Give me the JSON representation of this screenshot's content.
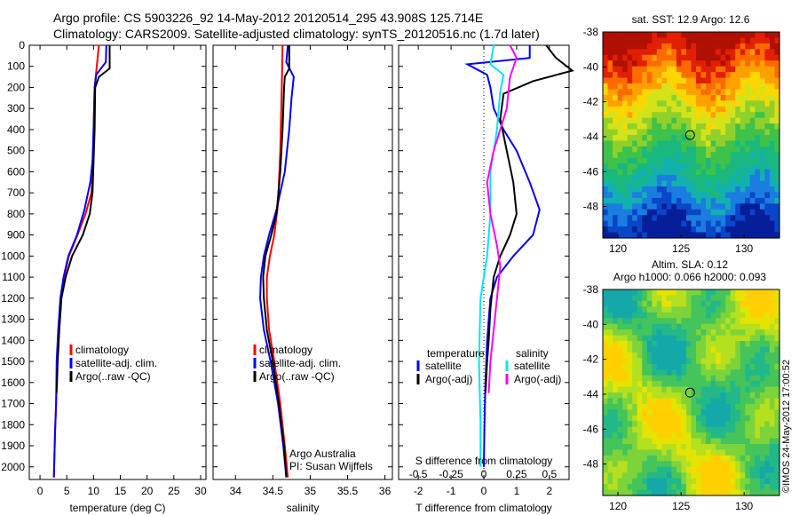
{
  "header": {
    "line1": "Argo profile: CS 5903226_92 14-May-2012 20120514_295 43.908S 125.714E",
    "line2": "Climatology: CARS2009. Satellite-adjusted climatology: synTS_20120516.nc (1.7d later)"
  },
  "stamp": "©IMOS 24-May-2012 17:00:52",
  "colors": {
    "red": "#ff0000",
    "blue": "#0000ff",
    "black": "#000000",
    "cyan": "#00e5ff",
    "magenta": "#ff00ff"
  },
  "chart_data": [
    {
      "type": "line",
      "panel": "temperature",
      "xlabel": "temperature (deg C)",
      "ylabel": "",
      "xlim": [
        -2,
        31
      ],
      "ylim": [
        2060,
        0
      ],
      "xticks": [
        0,
        5,
        10,
        15,
        20,
        25,
        30
      ],
      "yticks": [
        0,
        100,
        200,
        300,
        400,
        500,
        600,
        700,
        800,
        900,
        1000,
        1100,
        1200,
        1300,
        1400,
        1500,
        1600,
        1700,
        1800,
        1900,
        2000
      ],
      "legend": [
        "climatology",
        "satellite-adj. clim.",
        "Argo(..raw -QC)"
      ],
      "legend_position": "lower-middle",
      "series": [
        {
          "name": "climatology",
          "color": "red",
          "points": [
            [
              11,
              0
            ],
            [
              10.6,
              100
            ],
            [
              10.2,
              200
            ],
            [
              10.0,
              400
            ],
            [
              9.9,
              550
            ],
            [
              9.6,
              700
            ],
            [
              8.5,
              800
            ],
            [
              7.0,
              900
            ],
            [
              5.4,
              1000
            ],
            [
              4.5,
              1100
            ],
            [
              3.9,
              1200
            ],
            [
              3.5,
              1350
            ],
            [
              3.2,
              1500
            ],
            [
              3.0,
              1700
            ],
            [
              2.8,
              1850
            ],
            [
              2.65,
              2000
            ],
            [
              2.6,
              2050
            ]
          ]
        },
        {
          "name": "satellite-adj. clim.",
          "color": "blue",
          "points": [
            [
              12.4,
              0
            ],
            [
              12.3,
              80
            ],
            [
              10.5,
              140
            ],
            [
              10.2,
              200
            ],
            [
              10.0,
              400
            ],
            [
              9.8,
              550
            ],
            [
              9.4,
              650
            ],
            [
              8.3,
              780
            ],
            [
              6.9,
              900
            ],
            [
              5.3,
              1000
            ],
            [
              4.4,
              1100
            ],
            [
              3.8,
              1200
            ],
            [
              3.4,
              1350
            ],
            [
              3.1,
              1500
            ],
            [
              3.0,
              1700
            ],
            [
              2.8,
              1850
            ],
            [
              2.65,
              2000
            ],
            [
              2.6,
              2050
            ]
          ]
        },
        {
          "name": "Argo(..raw -QC)",
          "color": "black",
          "points": [
            [
              13.0,
              0
            ],
            [
              13.0,
              110
            ],
            [
              11.0,
              150
            ],
            [
              10.3,
              200
            ],
            [
              10.2,
              400
            ],
            [
              10.0,
              550
            ],
            [
              9.8,
              700
            ],
            [
              9.3,
              800
            ],
            [
              8.0,
              900
            ],
            [
              6.0,
              1000
            ],
            [
              4.8,
              1100
            ],
            [
              4.0,
              1200
            ],
            [
              3.6,
              1350
            ],
            [
              3.3,
              1500
            ],
            [
              3.1,
              1650
            ]
          ]
        }
      ]
    },
    {
      "type": "line",
      "panel": "salinity",
      "xlabel": "salinity",
      "xlim": [
        33.7,
        36.1
      ],
      "ylim": [
        2060,
        0
      ],
      "xticks": [
        34,
        34.5,
        35,
        35.5,
        36
      ],
      "legend": [
        "climatology",
        "satellite-adj. clim.",
        "Argo(..raw -QC)"
      ],
      "legend_position": "lower-middle",
      "annotation": [
        "Argo Australia",
        "PI: Susan Wijffels"
      ],
      "series": [
        {
          "name": "climatology",
          "color": "red",
          "points": [
            [
              34.63,
              0
            ],
            [
              34.62,
              200
            ],
            [
              34.6,
              500
            ],
            [
              34.57,
              750
            ],
            [
              34.52,
              900
            ],
            [
              34.46,
              1000
            ],
            [
              34.42,
              1100
            ],
            [
              34.42,
              1200
            ],
            [
              34.45,
              1350
            ],
            [
              34.52,
              1500
            ],
            [
              34.6,
              1700
            ],
            [
              34.66,
              1900
            ],
            [
              34.7,
              2050
            ]
          ]
        },
        {
          "name": "satellite-adj. clim.",
          "color": "blue",
          "points": [
            [
              34.7,
              0
            ],
            [
              34.68,
              80
            ],
            [
              34.78,
              150
            ],
            [
              34.75,
              250
            ],
            [
              34.72,
              400
            ],
            [
              34.66,
              600
            ],
            [
              34.55,
              780
            ],
            [
              34.45,
              900
            ],
            [
              34.38,
              1000
            ],
            [
              34.34,
              1100
            ],
            [
              34.33,
              1200
            ],
            [
              34.38,
              1350
            ],
            [
              34.47,
              1500
            ],
            [
              34.57,
              1700
            ],
            [
              34.64,
              1900
            ],
            [
              34.68,
              2050
            ]
          ]
        },
        {
          "name": "Argo(..raw -QC)",
          "color": "black",
          "points": [
            [
              34.72,
              0
            ],
            [
              34.72,
              110
            ],
            [
              34.66,
              150
            ],
            [
              34.65,
              200
            ],
            [
              34.63,
              400
            ],
            [
              34.6,
              600
            ],
            [
              34.55,
              800
            ],
            [
              34.48,
              900
            ],
            [
              34.4,
              1000
            ],
            [
              34.37,
              1100
            ],
            [
              34.38,
              1200
            ],
            [
              34.42,
              1350
            ],
            [
              34.5,
              1500
            ],
            [
              34.58,
              1700
            ],
            [
              34.65,
              1900
            ],
            [
              34.68,
              2050
            ]
          ]
        }
      ]
    },
    {
      "type": "line",
      "panel": "difference",
      "xlabel": "T difference from climatology",
      "xlabel_top": "S difference from climatology",
      "xlim": [
        -2.6,
        2.6
      ],
      "ylim": [
        2060,
        0
      ],
      "xticks": [
        -2,
        -1,
        0,
        1,
        2
      ],
      "s_ticks": [
        "-0.5",
        "-0.25",
        "0",
        "0.25",
        "0.5"
      ],
      "s_tick_positions": [
        -2,
        -1,
        0,
        1,
        2
      ],
      "legend_groups": [
        {
          "title": "temperature",
          "items": [
            {
              "label": "satellite",
              "color": "blue"
            },
            {
              "label": "Argo(-adj)",
              "color": "black"
            }
          ]
        },
        {
          "title": "salinity",
          "items": [
            {
              "label": "satellite",
              "color": "cyan"
            },
            {
              "label": "Argo(-adj)",
              "color": "magenta"
            }
          ]
        }
      ],
      "series": [
        {
          "name": "temperature satellite",
          "color": "blue",
          "points": [
            [
              1.4,
              0
            ],
            [
              1.4,
              60
            ],
            [
              -0.5,
              90
            ],
            [
              0.1,
              140
            ],
            [
              0.2,
              200
            ],
            [
              0.3,
              300
            ],
            [
              0.6,
              400
            ],
            [
              1.0,
              500
            ],
            [
              1.4,
              650
            ],
            [
              1.7,
              780
            ],
            [
              1.5,
              900
            ],
            [
              0.9,
              1000
            ],
            [
              0.4,
              1100
            ],
            [
              0.2,
              1200
            ],
            [
              0.1,
              1400
            ],
            [
              0.05,
              1600
            ],
            [
              0.02,
              1800
            ],
            [
              0,
              2000
            ]
          ]
        },
        {
          "name": "temperature Argo(-adj)",
          "color": "black",
          "points": [
            [
              1.9,
              0
            ],
            [
              2.2,
              60
            ],
            [
              2.7,
              120
            ],
            [
              1.5,
              170
            ],
            [
              0.6,
              230
            ],
            [
              0.5,
              350
            ],
            [
              0.7,
              500
            ],
            [
              0.9,
              650
            ],
            [
              1.0,
              800
            ],
            [
              0.8,
              900
            ],
            [
              0.5,
              1000
            ],
            [
              0.3,
              1100
            ],
            [
              0.2,
              1250
            ],
            [
              0.15,
              1400
            ],
            [
              0.1,
              1500
            ],
            [
              0.05,
              1650
            ]
          ]
        },
        {
          "name": "salinity satellite",
          "color": "cyan",
          "points": [
            [
              0.3,
              0
            ],
            [
              0.2,
              90
            ],
            [
              0.6,
              140
            ],
            [
              0.5,
              220
            ],
            [
              0.4,
              400
            ],
            [
              0.2,
              600
            ],
            [
              0.2,
              800
            ],
            [
              0.1,
              1000
            ],
            [
              -0.1,
              1200
            ],
            [
              -0.15,
              1500
            ],
            [
              -0.1,
              1800
            ],
            [
              -0.1,
              2000
            ]
          ]
        },
        {
          "name": "salinity Argo(-adj)",
          "color": "magenta",
          "points": [
            [
              0.8,
              0
            ],
            [
              1.0,
              60
            ],
            [
              0.8,
              150
            ],
            [
              0.7,
              300
            ],
            [
              0.3,
              500
            ],
            [
              0.1,
              650
            ],
            [
              0.2,
              800
            ],
            [
              0.4,
              950
            ],
            [
              0.5,
              1050
            ],
            [
              0.4,
              1200
            ],
            [
              0.3,
              1350
            ],
            [
              0.2,
              1500
            ],
            [
              0.15,
              1650
            ]
          ]
        }
      ]
    },
    {
      "type": "heatmap",
      "panel": "sst-map",
      "title": "sat. SST: 12.9 Argo: 12.6",
      "xlim": [
        118.8,
        132.8
      ],
      "ylim": [
        -49.8,
        -38
      ],
      "xticks": [
        120,
        125,
        130
      ],
      "yticks": [
        -38,
        -40,
        -42,
        -44,
        -46,
        -48
      ],
      "marker": {
        "lon": 125.714,
        "lat": -43.908
      }
    },
    {
      "type": "heatmap",
      "panel": "sla-map",
      "title_line1": "Altim. SLA: 0.12",
      "title_line2": "Argo h1000: 0.066 h2000: 0.093",
      "xlim": [
        118.8,
        132.8
      ],
      "ylim": [
        -49.8,
        -38
      ],
      "xticks": [
        120,
        125,
        130
      ],
      "yticks": [
        -38,
        -40,
        -42,
        -44,
        -46,
        -48
      ],
      "marker": {
        "lon": 125.714,
        "lat": -43.908
      }
    }
  ]
}
